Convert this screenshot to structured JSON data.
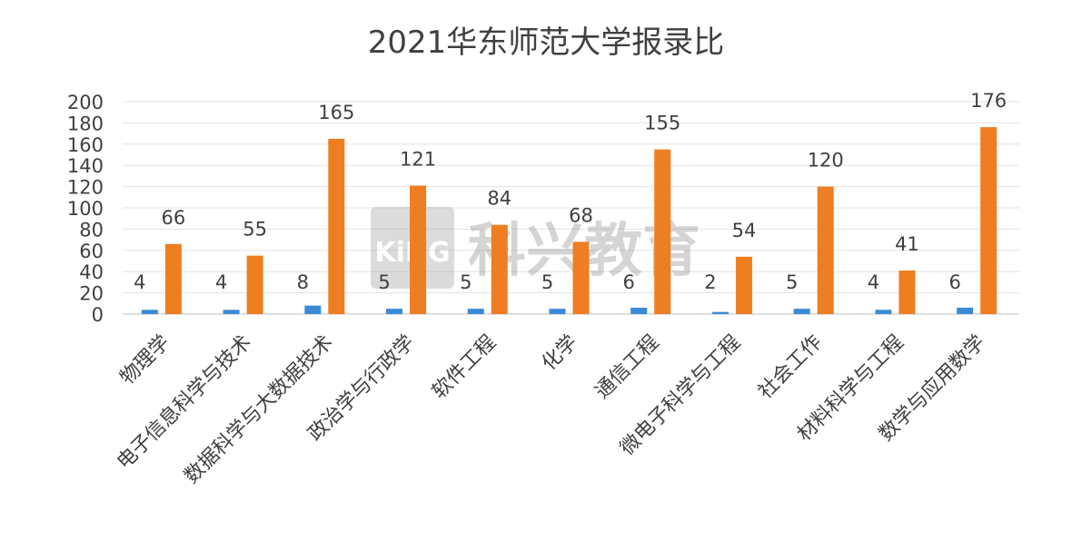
{
  "chart_data": {
    "type": "bar",
    "title": "2021华东师范大学报录比",
    "xlabel": "",
    "ylabel": "",
    "ylim": [
      0,
      200
    ],
    "yticks": [
      0,
      20,
      40,
      60,
      80,
      100,
      120,
      140,
      160,
      180,
      200
    ],
    "grid": true,
    "legend": "none",
    "categories": [
      "物理学",
      "电子信息科学与技术",
      "数据科学与大数据技术",
      "政治学与行政学",
      "软件工程",
      "化学",
      "通信工程",
      "微电子科学与工程",
      "社会工作",
      "材料科学与工程",
      "数学与应用数学"
    ],
    "series": [
      {
        "values": [
          4,
          4,
          8,
          5,
          5,
          5,
          6,
          2,
          5,
          4,
          6
        ],
        "color": "#3a8ad6"
      },
      {
        "values": [
          66,
          55,
          165,
          121,
          84,
          68,
          155,
          54,
          120,
          41,
          176
        ],
        "color": "#ef7d22"
      }
    ]
  },
  "watermark": {
    "logo_text": "KiNG",
    "text": "科兴教育"
  }
}
